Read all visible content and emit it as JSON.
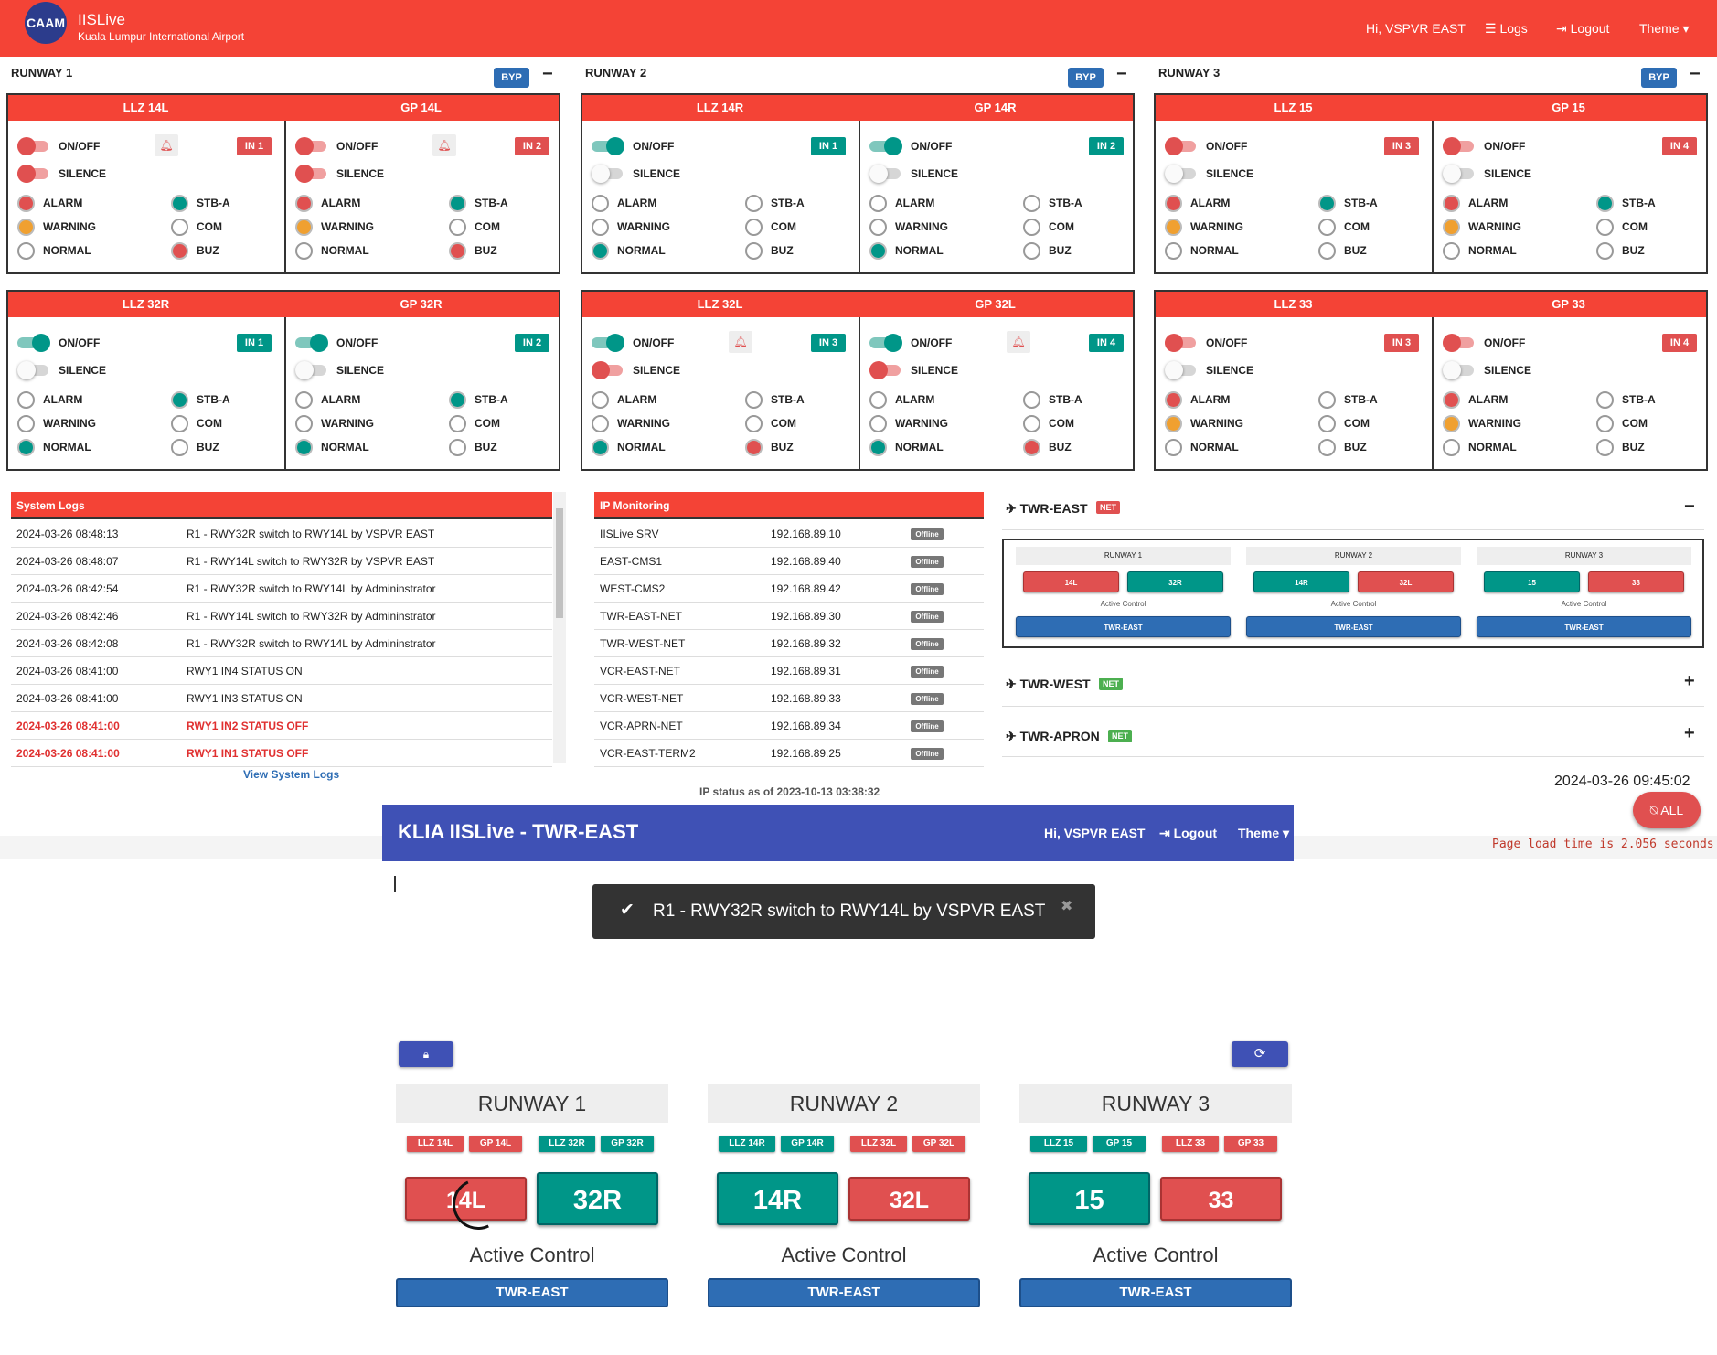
{
  "topnav": {
    "logo": "CAAM",
    "brand": "IISLive",
    "subtitle": "Kuala Lumpur International Airport",
    "greeting": "Hi, VSPVR EAST",
    "logs": "Logs",
    "logout": "Logout",
    "theme": "Theme"
  },
  "runways": [
    {
      "title": "RUNWAY 1",
      "byp": "BYP",
      "panels": [
        {
          "left": "LLZ 14L",
          "right": "GP 14L"
        },
        {
          "left": "LLZ 32R",
          "right": "GP 32R"
        }
      ]
    },
    {
      "title": "RUNWAY 2",
      "byp": "BYP",
      "panels": [
        {
          "left": "LLZ 14R",
          "right": "GP 14R"
        },
        {
          "left": "LLZ 32L",
          "right": "GP 32L"
        }
      ]
    },
    {
      "title": "RUNWAY 3",
      "byp": "BYP",
      "panels": [
        {
          "left": "LLZ 15",
          "right": "GP 15"
        },
        {
          "left": "LLZ 33",
          "right": "GP 33"
        }
      ]
    }
  ],
  "unit_labels": {
    "onoff": "ON/OFF",
    "silence": "SILENCE",
    "alarm": "ALARM",
    "warning": "WARNING",
    "normal": "NORMAL",
    "stba": "STB-A",
    "com": "COM",
    "buz": "BUZ"
  },
  "units": [
    {
      "onoff": "red",
      "silence": "red",
      "in": "IN 1",
      "in_color": "red",
      "bell": true,
      "alarm": "red",
      "warning": "orange",
      "normal": "off",
      "stba": "green",
      "com": "off",
      "buz": "red"
    },
    {
      "onoff": "red",
      "silence": "red",
      "in": "IN 2",
      "in_color": "red",
      "bell": true,
      "alarm": "red",
      "warning": "orange",
      "normal": "off",
      "stba": "green",
      "com": "off",
      "buz": "red"
    },
    {
      "onoff": "green",
      "silence": "off",
      "in": "IN 1",
      "in_color": "green",
      "bell": false,
      "alarm": "off",
      "warning": "off",
      "normal": "green",
      "stba": "green",
      "com": "off",
      "buz": "off"
    },
    {
      "onoff": "green",
      "silence": "off",
      "in": "IN 2",
      "in_color": "green",
      "bell": false,
      "alarm": "off",
      "warning": "off",
      "normal": "green",
      "stba": "green",
      "com": "off",
      "buz": "off"
    },
    {
      "onoff": "green",
      "silence": "off",
      "in": "IN 1",
      "in_color": "green",
      "bell": false,
      "alarm": "off",
      "warning": "off",
      "normal": "green",
      "stba": "off",
      "com": "off",
      "buz": "off"
    },
    {
      "onoff": "green",
      "silence": "off",
      "in": "IN 2",
      "in_color": "green",
      "bell": false,
      "alarm": "off",
      "warning": "off",
      "normal": "green",
      "stba": "off",
      "com": "off",
      "buz": "off"
    },
    {
      "onoff": "green",
      "silence": "red",
      "in": "IN 3",
      "in_color": "green",
      "bell": true,
      "alarm": "off",
      "warning": "off",
      "normal": "green",
      "stba": "off",
      "com": "off",
      "buz": "red"
    },
    {
      "onoff": "green",
      "silence": "red",
      "in": "IN 4",
      "in_color": "green",
      "bell": true,
      "alarm": "off",
      "warning": "off",
      "normal": "green",
      "stba": "off",
      "com": "off",
      "buz": "red"
    },
    {
      "onoff": "red",
      "silence": "off",
      "in": "IN 3",
      "in_color": "red",
      "bell": false,
      "alarm": "red",
      "warning": "orange",
      "normal": "off",
      "stba": "green",
      "com": "off",
      "buz": "off"
    },
    {
      "onoff": "red",
      "silence": "off",
      "in": "IN 4",
      "in_color": "red",
      "bell": false,
      "alarm": "red",
      "warning": "orange",
      "normal": "off",
      "stba": "green",
      "com": "off",
      "buz": "off"
    },
    {
      "onoff": "red",
      "silence": "off",
      "in": "IN 3",
      "in_color": "red",
      "bell": false,
      "alarm": "red",
      "warning": "orange",
      "normal": "off",
      "stba": "off",
      "com": "off",
      "buz": "off"
    },
    {
      "onoff": "red",
      "silence": "off",
      "in": "IN 4",
      "in_color": "red",
      "bell": false,
      "alarm": "red",
      "warning": "orange",
      "normal": "off",
      "stba": "off",
      "com": "off",
      "buz": "off"
    }
  ],
  "system_logs": {
    "title": "System Logs",
    "rows": [
      {
        "time": "2024-03-26 08:48:13",
        "msg": "R1 - RWY32R switch to RWY14L by VSPVR EAST",
        "alert": false
      },
      {
        "time": "2024-03-26 08:48:07",
        "msg": "R1 - RWY14L switch to RWY32R by VSPVR EAST",
        "alert": false
      },
      {
        "time": "2024-03-26 08:42:54",
        "msg": "R1 - RWY32R switch to RWY14L by Admininstrator",
        "alert": false
      },
      {
        "time": "2024-03-26 08:42:46",
        "msg": "R1 - RWY14L switch to RWY32R by Admininstrator",
        "alert": false
      },
      {
        "time": "2024-03-26 08:42:08",
        "msg": "R1 - RWY32R switch to RWY14L by Admininstrator",
        "alert": false
      },
      {
        "time": "2024-03-26 08:41:00",
        "msg": "RWY1 IN4 STATUS ON",
        "alert": false
      },
      {
        "time": "2024-03-26 08:41:00",
        "msg": "RWY1 IN3 STATUS ON",
        "alert": false
      },
      {
        "time": "2024-03-26 08:41:00",
        "msg": "RWY1 IN2 STATUS OFF",
        "alert": true
      },
      {
        "time": "2024-03-26 08:41:00",
        "msg": "RWY1 IN1 STATUS OFF",
        "alert": true
      }
    ],
    "link": "View System Logs"
  },
  "ip_monitoring": {
    "title": "IP Monitoring",
    "rows": [
      {
        "name": "IISLive SRV",
        "ip": "192.168.89.10",
        "status": "Offline"
      },
      {
        "name": "EAST-CMS1",
        "ip": "192.168.89.40",
        "status": "Offline"
      },
      {
        "name": "WEST-CMS2",
        "ip": "192.168.89.42",
        "status": "Offline"
      },
      {
        "name": "TWR-EAST-NET",
        "ip": "192.168.89.30",
        "status": "Offline"
      },
      {
        "name": "TWR-WEST-NET",
        "ip": "192.168.89.32",
        "status": "Offline"
      },
      {
        "name": "VCR-EAST-NET",
        "ip": "192.168.89.31",
        "status": "Offline"
      },
      {
        "name": "VCR-WEST-NET",
        "ip": "192.168.89.33",
        "status": "Offline"
      },
      {
        "name": "VCR-APRN-NET",
        "ip": "192.168.89.34",
        "status": "Offline"
      },
      {
        "name": "VCR-EAST-TERM2",
        "ip": "192.168.89.25",
        "status": "Offline"
      }
    ],
    "status_note": "IP status as of 2023-10-13 03:38:32"
  },
  "towers": {
    "east": {
      "name": "TWR-EAST",
      "net": "NET",
      "net_color": "#e05050",
      "toggle": "−"
    },
    "west": {
      "name": "TWR-WEST",
      "net": "NET",
      "net_color": "#4caf50",
      "toggle": "+"
    },
    "apron": {
      "name": "TWR-APRON",
      "net": "NET",
      "net_color": "#4caf50",
      "toggle": "+"
    },
    "mini": [
      {
        "title": "RUNWAY 1",
        "a": "14L",
        "b": "32R",
        "a_color": "red",
        "b_color": "green",
        "ac": "Active Control",
        "twr": "TWR-EAST"
      },
      {
        "title": "RUNWAY 2",
        "a": "14R",
        "b": "32L",
        "a_color": "green",
        "b_color": "red",
        "ac": "Active Control",
        "twr": "TWR-EAST"
      },
      {
        "title": "RUNWAY 3",
        "a": "15",
        "b": "33",
        "a_color": "green",
        "b_color": "red",
        "ac": "Active Control",
        "twr": "TWR-EAST"
      }
    ]
  },
  "clock": "2024-03-26 09:45:02",
  "all_button": "ALL",
  "load_time": "Page load time is 2.056 seconds",
  "modal": {
    "title": "KLIA IISLive - TWR-EAST",
    "greeting": "Hi, VSPVR EAST",
    "logout": "Logout",
    "theme": "Theme",
    "toast": "R1 - RWY32R switch to RWY14L by VSPVR EAST",
    "runways": [
      {
        "title": "RUNWAY 1",
        "tags": [
          {
            "t": "LLZ 14L",
            "c": "red"
          },
          {
            "t": "GP 14L",
            "c": "red"
          },
          {
            "t": "LLZ 32R",
            "c": "green"
          },
          {
            "t": "GP 32R",
            "c": "green"
          }
        ],
        "a": "14L",
        "b": "32R",
        "a_color": "red",
        "b_color": "green",
        "ac": "Active Control",
        "twr": "TWR-EAST"
      },
      {
        "title": "RUNWAY 2",
        "tags": [
          {
            "t": "LLZ 14R",
            "c": "green"
          },
          {
            "t": "GP 14R",
            "c": "green"
          },
          {
            "t": "LLZ 32L",
            "c": "red"
          },
          {
            "t": "GP 32L",
            "c": "red"
          }
        ],
        "a": "14R",
        "b": "32L",
        "a_color": "green",
        "b_color": "red",
        "ac": "Active Control",
        "twr": "TWR-EAST"
      },
      {
        "title": "RUNWAY 3",
        "tags": [
          {
            "t": "LLZ 15",
            "c": "green"
          },
          {
            "t": "GP 15",
            "c": "green"
          },
          {
            "t": "LLZ 33",
            "c": "red"
          },
          {
            "t": "GP 33",
            "c": "red"
          }
        ],
        "a": "15",
        "b": "33",
        "a_color": "green",
        "b_color": "red",
        "ac": "Active Control",
        "twr": "TWR-EAST"
      }
    ]
  }
}
